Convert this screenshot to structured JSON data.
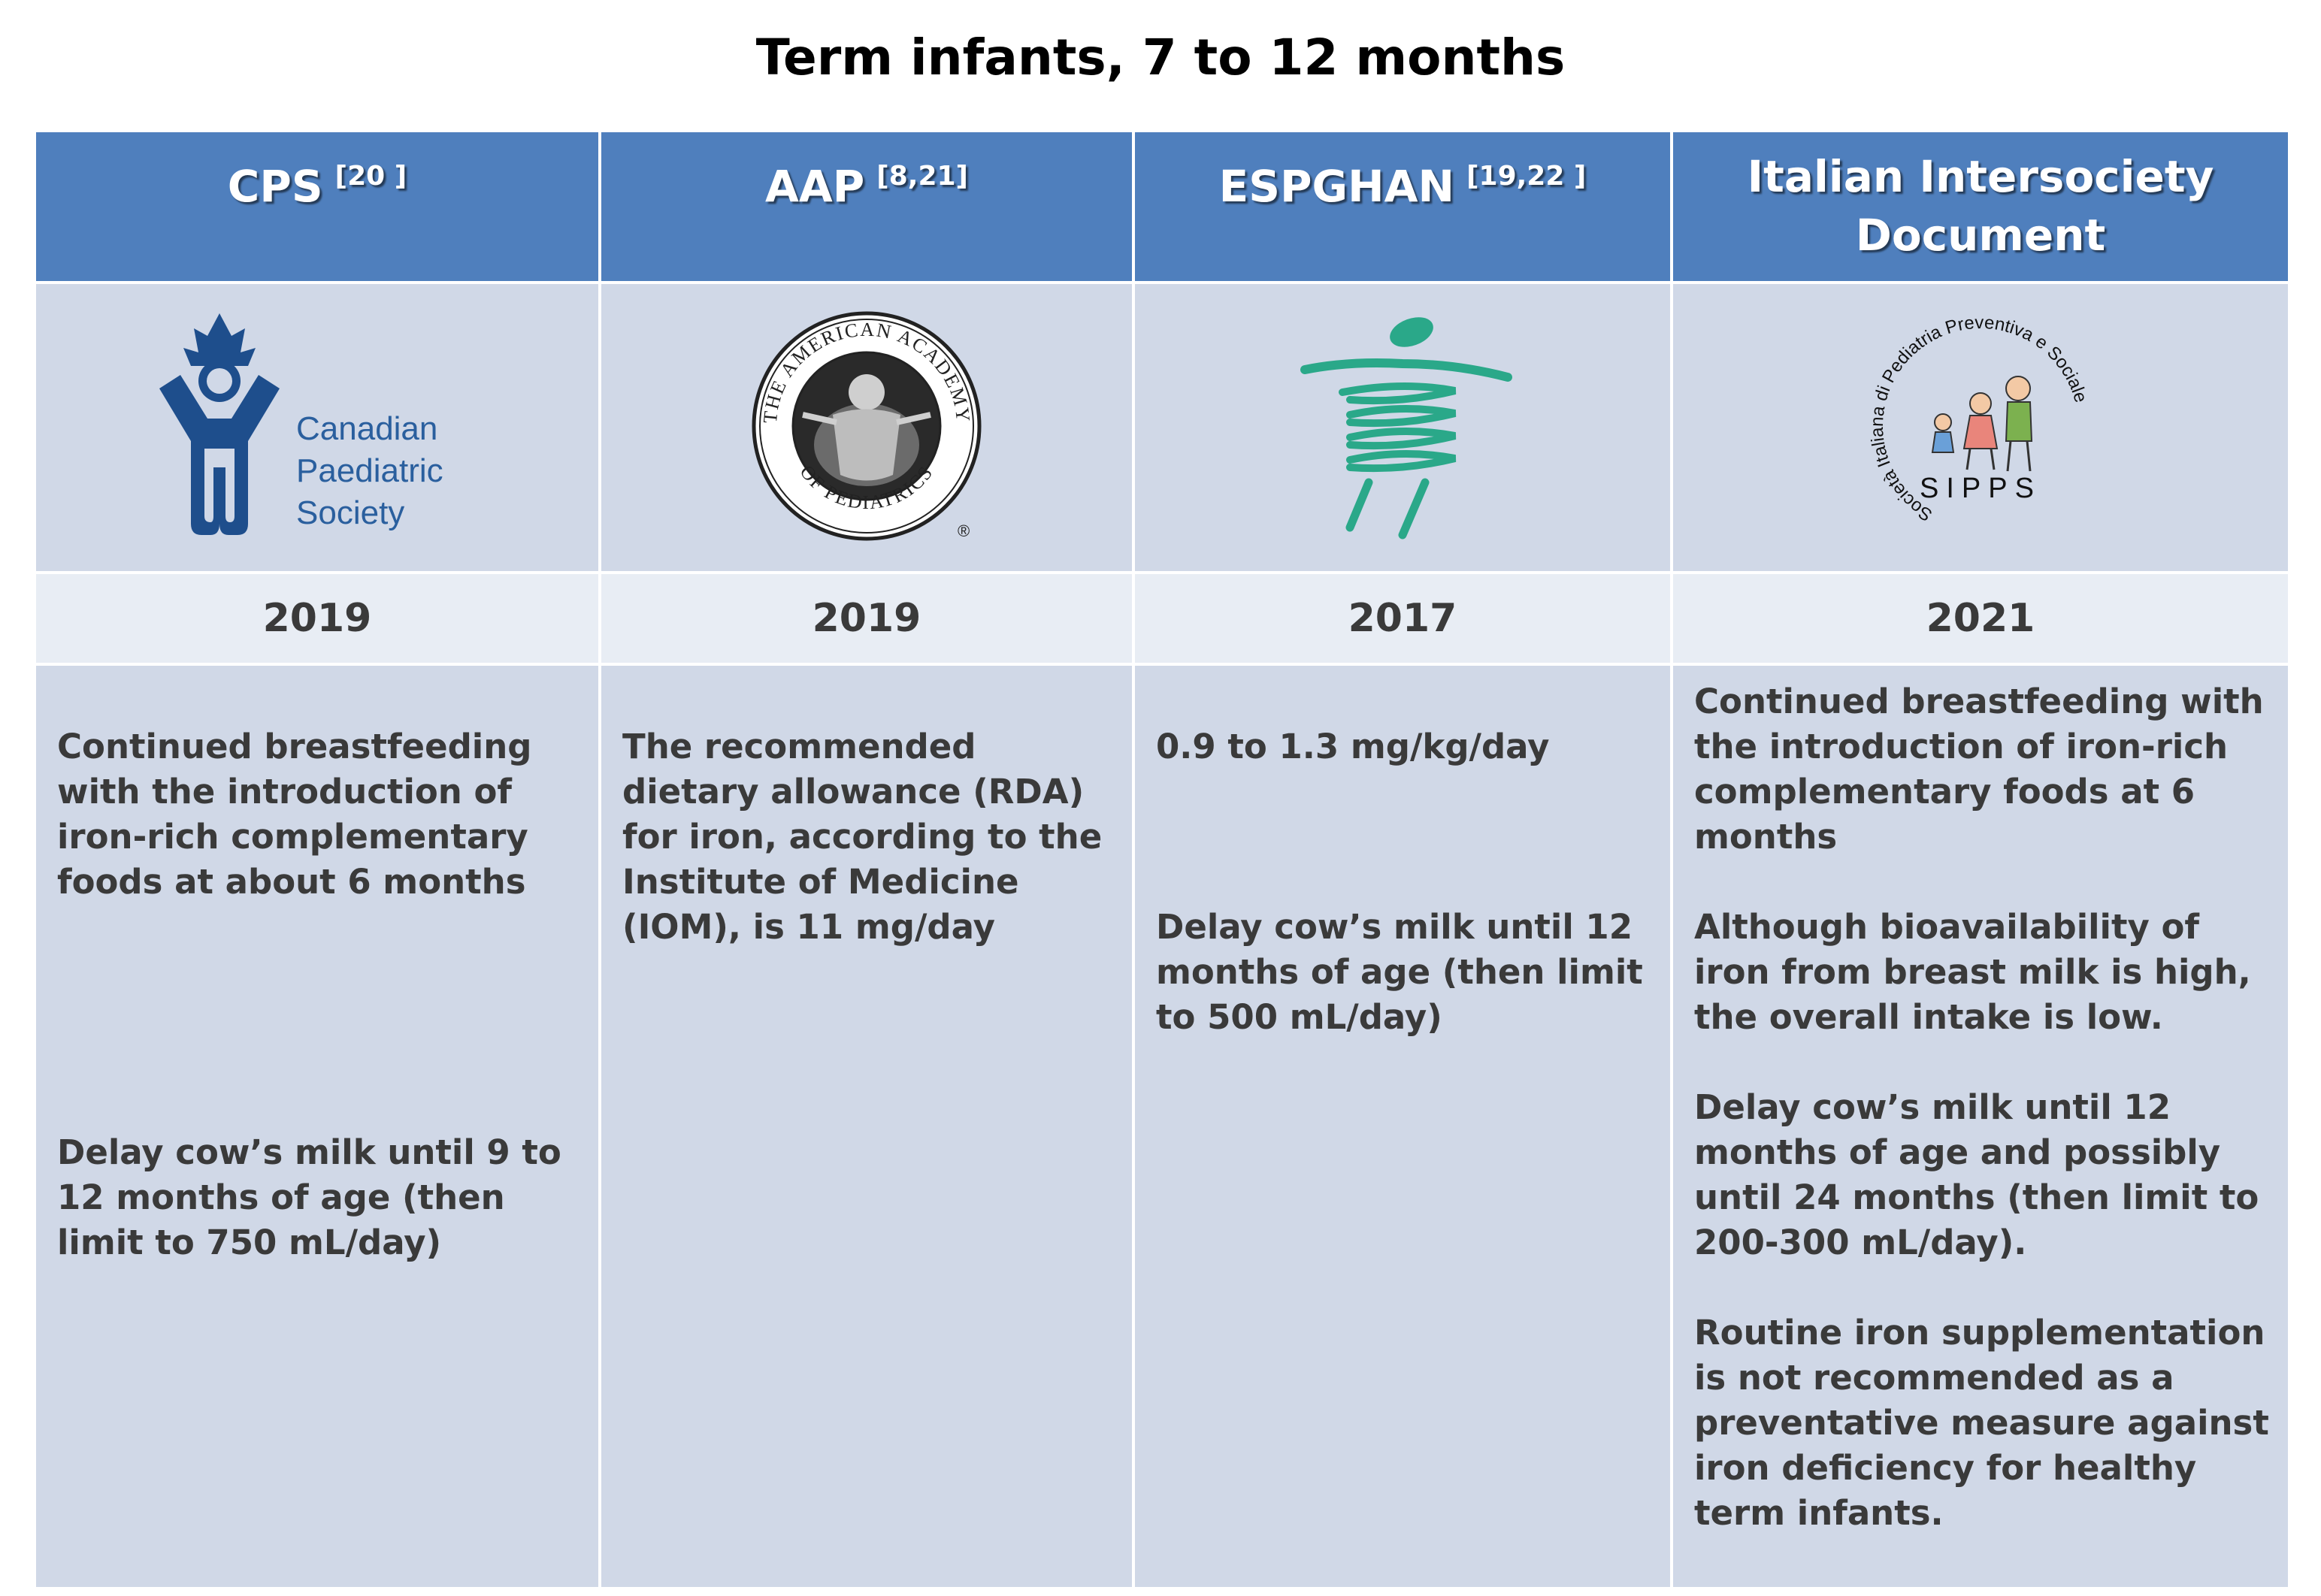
{
  "title": "Term infants, 7 to 12 months",
  "columns": [
    {
      "name": "CPS",
      "ref": "[20 ]",
      "year": "2019",
      "logo": {
        "icon": "canadian-paediatric-society-logo",
        "lines": [
          "Canadian",
          "Paediatric",
          "Society"
        ],
        "color": "#1e4e8c"
      },
      "paragraphs": [
        "Continued breastfeeding with the introduction of iron-rich complementary foods at about 6 months",
        "Delay cow’s milk until 9 to 12 months of age (then limit to 750 mL/day)"
      ]
    },
    {
      "name": "AAP",
      "ref": "[8,21]",
      "year": "2019",
      "logo": {
        "icon": "american-academy-of-pediatrics-seal",
        "ring_top": "THE AMERICAN ACADEMY",
        "ring_bottom": "OF PEDIATRICS"
      },
      "paragraphs": [
        "The recommended dietary allowance (RDA) for iron, according to the Institute of Medicine (IOM), is 11 mg/day"
      ]
    },
    {
      "name": "ESPGHAN",
      "ref": "[19,22 ]",
      "year": "2017",
      "logo": {
        "icon": "espghan-figure-logo",
        "color": "#2aa889"
      },
      "paragraphs": [
        "0.9 to 1.3 mg/kg/day",
        "Delay cow’s milk until  12 months of age (then limit to 500 mL/day)"
      ]
    },
    {
      "name": "Italian Intersociety Document",
      "ref": "",
      "year": "2021",
      "logo": {
        "icon": "sipps-logo",
        "ring": "Società Italiana di Pediatria Preventiva e Sociale",
        "acronym": "SIPPS"
      },
      "paragraphs": [
        "Continued breastfeeding with the introduction of iron-rich complementary foods at 6 months",
        "Although bioavailability of iron from breast milk is high, the overall intake is low.",
        "Delay cow’s milk until 12 months of age and possibly until 24 months (then limit to 200-300 mL/day).",
        "Routine iron supplementation is not recommended as a preventative measure against iron deficiency for healthy term infants."
      ]
    }
  ]
}
